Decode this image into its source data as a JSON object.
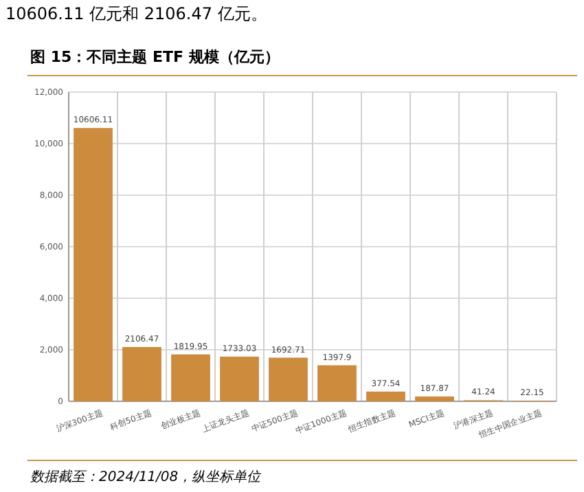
{
  "chart_data": {
    "type": "bar",
    "title": "图 15：不同主题 ETF 规模（亿元）",
    "categories": [
      "沪深300主题",
      "科创50主题",
      "创业板主题",
      "上证龙头主题",
      "中证500主题",
      "中证1000主题",
      "恒生指数主题",
      "MSCI主题",
      "沪港深主题",
      "恒生中国企业主题"
    ],
    "values": [
      10606.11,
      2106.47,
      1819.95,
      1733.03,
      1692.71,
      1397.9,
      377.54,
      187.87,
      41.24,
      22.15
    ],
    "color": "#cd8b3e",
    "ylim": [
      0,
      12000
    ],
    "yticks": [
      {
        "value": 0,
        "label": "0"
      },
      {
        "value": 2000,
        "label": "2,000"
      },
      {
        "value": 4000,
        "label": "4,000"
      },
      {
        "value": 6000,
        "label": "6,000"
      },
      {
        "value": 8000,
        "label": "8,000"
      },
      {
        "value": 10000,
        "label": "10,000"
      },
      {
        "value": 12000,
        "label": "12,000"
      }
    ],
    "grid": true,
    "data_labels": true,
    "annotations": [
      "10606.11 亿元和 2106.47 亿元。",
      "数据截至：2024/11/08，纵坐标单位"
    ]
  }
}
